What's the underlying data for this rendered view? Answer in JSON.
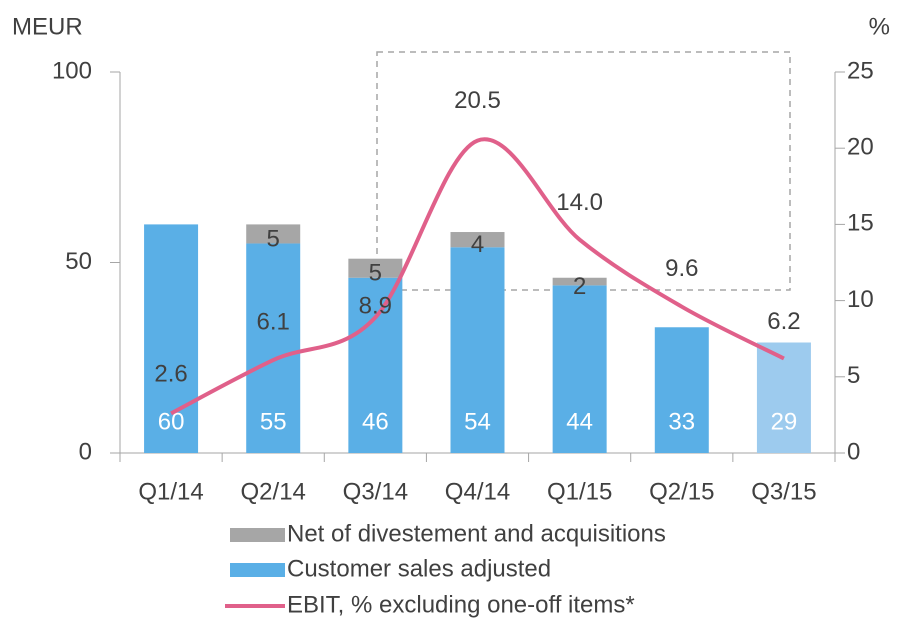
{
  "chart_data": {
    "type": "bar",
    "y_label": "MEUR",
    "y2_label": "%",
    "categories": [
      "Q1/14",
      "Q2/14",
      "Q3/14",
      "Q4/14",
      "Q1/15",
      "Q2/15",
      "Q3/15"
    ],
    "series": [
      {
        "name": "Customer sales adjusted",
        "type": "bar",
        "color": "#5aafe6",
        "colors": [
          "#5aafe6",
          "#5aafe6",
          "#5aafe6",
          "#5aafe6",
          "#5aafe6",
          "#5aafe6",
          "#9dcbee"
        ],
        "values": [
          60,
          55,
          46,
          54,
          44,
          33,
          29
        ]
      },
      {
        "name": "Net of divestement and acquisitions",
        "type": "bar",
        "color": "#a6a6a6",
        "values": [
          null,
          5,
          5,
          4,
          2,
          null,
          null
        ]
      },
      {
        "name": "EBIT, % excluding one-off items*",
        "type": "line",
        "axis": "y2",
        "color": "#e0608a",
        "values": [
          2.6,
          6.1,
          8.9,
          20.5,
          14.0,
          9.6,
          6.2
        ],
        "value_labels": [
          "2.6",
          "6.1",
          "8.9",
          "20.5",
          "14.0",
          "9.6",
          "6.2"
        ]
      }
    ],
    "ylim": [
      0,
      100
    ],
    "yticks": [
      0,
      50,
      100
    ],
    "y2lim": [
      0,
      25
    ],
    "y2ticks": [
      0,
      5,
      10,
      15,
      20,
      25
    ]
  }
}
